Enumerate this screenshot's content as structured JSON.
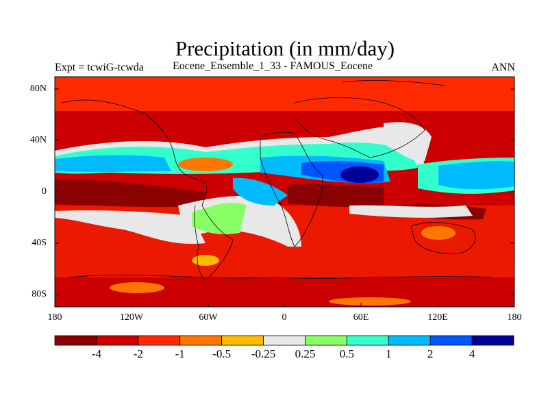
{
  "title": "Precipitation (in mm/day)",
  "subtitle_left": "Expt = tcwiG-tcwda",
  "subtitle_center": "Eocene_Ensemble_1_33 - FAMOUS_Eocene",
  "subtitle_right": "ANN",
  "lat_labels": [
    "80N",
    "40N",
    "0",
    "40S",
    "80S"
  ],
  "lon_labels": [
    "180",
    "120W",
    "60W",
    "0",
    "60E",
    "120E",
    "180"
  ],
  "colorbar": {
    "colors": [
      "#8b0000",
      "#cc0000",
      "#ff2a00",
      "#ff7700",
      "#ffbb00",
      "#e8e8e8",
      "#88ff66",
      "#33ffcc",
      "#00bbff",
      "#0055ff",
      "#000099"
    ],
    "tick_labels": [
      "-4",
      "-2",
      "-1",
      "-0.5",
      "-0.25",
      "0.25",
      "0.5",
      "1",
      "2",
      "4"
    ]
  }
}
